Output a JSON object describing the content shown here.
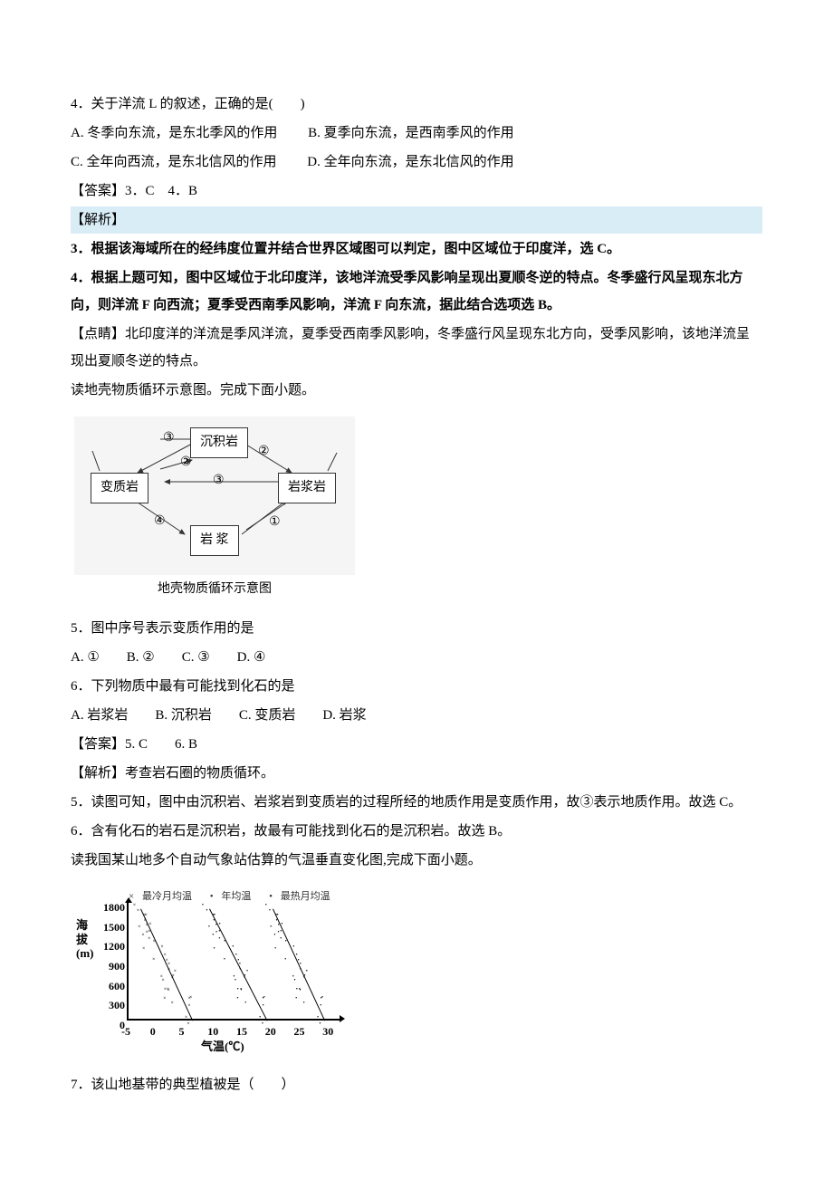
{
  "q4": {
    "stem": "4．关于洋流 L 的叙述，正确的是(　　)",
    "optA": "A. 冬季向东流，是东北季风的作用",
    "optB": "B. 夏季向东流，是西南季风的作用",
    "optC": "C. 全年向西流，是东北信风的作用",
    "optD": "D. 全年向东流，是东北信风的作用"
  },
  "ans34": "【答案】3．C　4．B",
  "analysis_label": "【解析】",
  "a3": "3．根据该海域所在的经纬度位置并结合世界区域图可以判定，图中区域位于印度洋，选 C。",
  "a4": "4．根据上题可知，图中区域位于北印度洋，该地洋流受季风影响呈现出夏顺冬逆的特点。冬季盛行风呈现东北方向，则洋流 F 向西流；夏季受西南季风影响，洋流 F 向东流，据此结合选项选 B。",
  "tip": "【点睛】北印度洋的洋流是季风洋流，夏季受西南季风影响，冬季盛行风呈现东北方向，受季风影响，该地洋流呈现出夏顺冬逆的特点。",
  "intro56": "读地壳物质循环示意图。完成下面小题。",
  "rock": {
    "sedimentary": "沉积岩",
    "metamorphic": "变质岩",
    "igneous": "岩浆岩",
    "magma": "岩 浆",
    "caption": "地壳物质循环示意图",
    "n1": "①",
    "n2": "②",
    "n3": "③",
    "n4": "④"
  },
  "q5": {
    "stem": "5．图中序号表示变质作用的是",
    "opts": "A. ①　　B. ②　　C. ③　　D. ④"
  },
  "q6": {
    "stem": "6．下列物质中最有可能找到化石的是",
    "opts": "A. 岩浆岩　　B. 沉积岩　　C. 变质岩　　D. 岩浆"
  },
  "ans56": "【答案】5. C　　6. B",
  "analysis56_intro": "【解析】考查岩石圈的物质循环。",
  "a5": "5．读图可知，图中由沉积岩、岩浆岩到变质岩的过程所经的地质作用是变质作用，故③表示地质作用。故选 C。",
  "a6": "6．含有化石的岩石是沉积岩，故最有可能找到化石的是沉积岩。故选 B。",
  "intro7": "读我国某山地多个自动气象站估算的气温垂直变化图,完成下面小题。",
  "chart": {
    "legend": {
      "cold": "最冷月均温",
      "annual": "年均温",
      "hot": "最热月均温"
    },
    "legend_markers": {
      "cold": "×",
      "annual": "•",
      "hot": "•"
    },
    "ylabel": "海拔(m)",
    "yticks": [
      "1800",
      "1500",
      "1200",
      "900",
      "600",
      "300",
      "0"
    ],
    "xlabel": "气温(℃)",
    "xticks": [
      "-5",
      "0",
      "5",
      "10",
      "15",
      "20",
      "25",
      "30"
    ],
    "xlim": [
      -5,
      32
    ],
    "ylim": [
      0,
      1900
    ],
    "trend_color": "#000000",
    "point_color": "#000000",
    "series": {
      "cold": {
        "marker": "×",
        "trend_x": [
          -3,
          6
        ],
        "trend_y": [
          1800,
          0
        ]
      },
      "annual": {
        "marker": "•",
        "trend_x": [
          9,
          19
        ],
        "trend_y": [
          1800,
          0
        ]
      },
      "hot": {
        "marker": "•",
        "trend_x": [
          20,
          29
        ],
        "trend_y": [
          1800,
          0
        ]
      }
    }
  },
  "q7": "7．该山地基带的典型植被是（　　）"
}
